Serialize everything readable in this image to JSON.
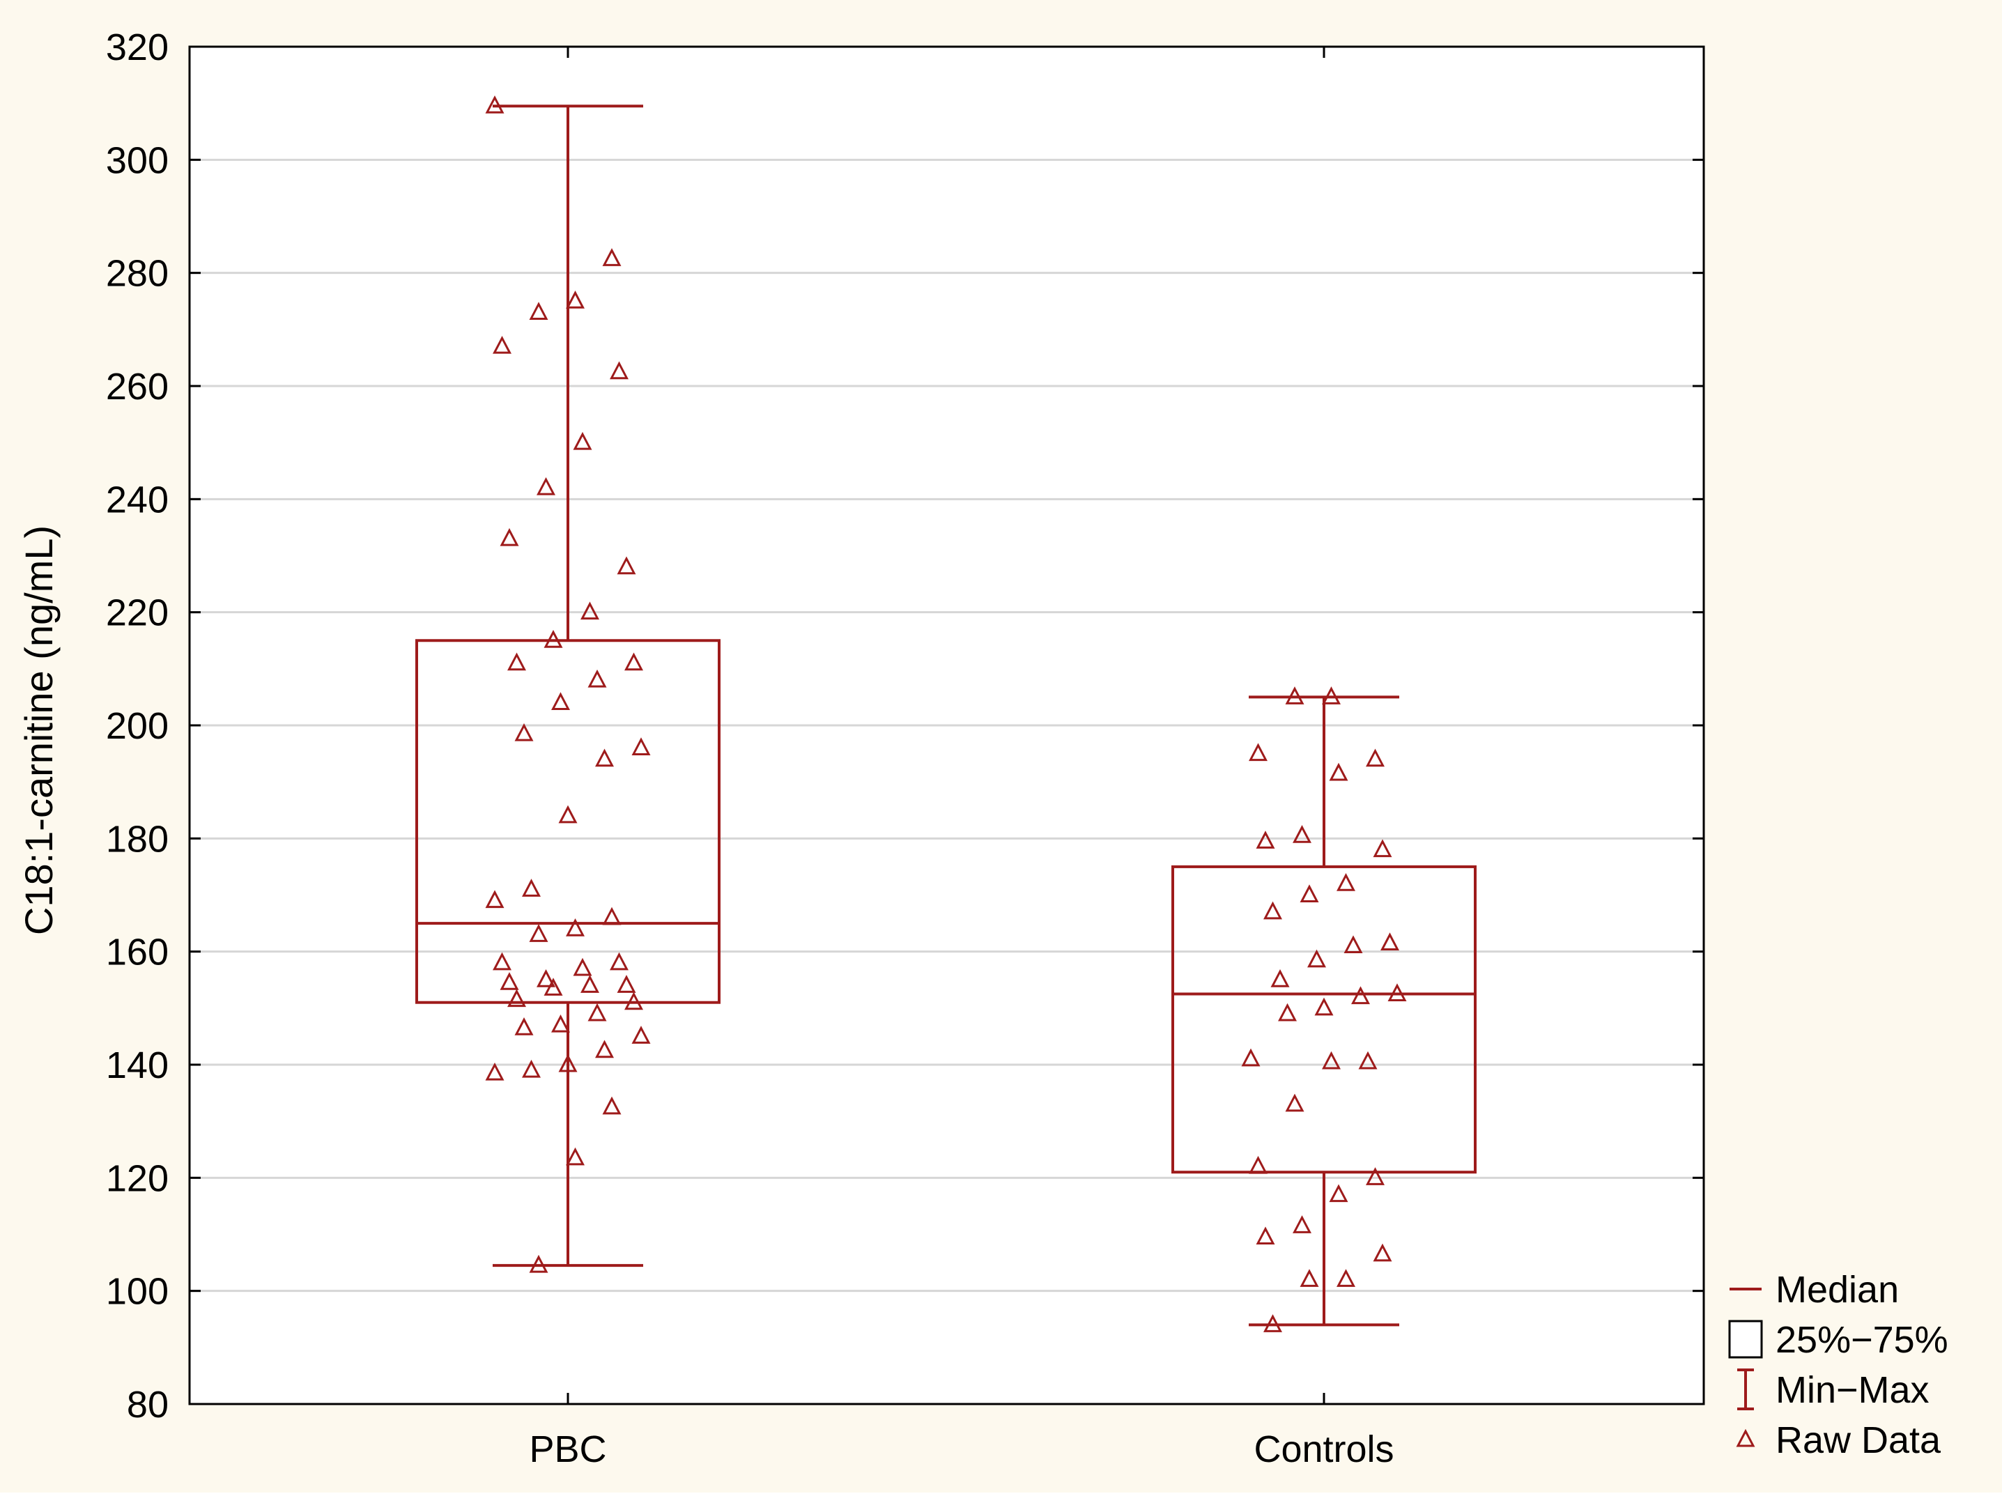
{
  "colors": {
    "page_background": "#fdf9ee",
    "plot_background": "#ffffff",
    "series": "#9e1b1b",
    "gridline": "#d6d6d6",
    "axis": "#000000"
  },
  "chart_data": {
    "type": "box",
    "title": "",
    "xlabel": "",
    "ylabel": "C18:1-carnitine (ng/mL)",
    "ylim": [
      80,
      320
    ],
    "yticks": [
      80,
      100,
      120,
      140,
      160,
      180,
      200,
      220,
      240,
      260,
      280,
      300,
      320
    ],
    "grid": true,
    "categories": [
      "PBC",
      "Controls"
    ],
    "boxes": [
      {
        "group": "PBC",
        "min": 104.5,
        "q1": 151,
        "median": 165,
        "q3": 215,
        "max": 309.5,
        "raw": [
          309.5,
          282.5,
          275,
          273,
          267,
          262.5,
          250,
          242,
          233,
          228,
          220,
          215,
          211,
          211,
          208,
          204,
          198.5,
          196,
          194,
          184,
          171,
          169,
          166,
          164,
          163,
          158,
          158,
          157,
          155,
          154.5,
          154,
          154,
          153.5,
          151.5,
          151,
          149,
          147,
          146.5,
          145,
          142.5,
          140,
          139,
          138.5,
          132.5,
          123.5,
          104.5
        ]
      },
      {
        "group": "Controls",
        "min": 94,
        "q1": 121,
        "median": 152.5,
        "q3": 175,
        "max": 205,
        "raw": [
          205,
          205,
          195,
          194,
          191.5,
          180.5,
          179.5,
          178,
          172,
          170,
          167,
          161.5,
          161,
          158.5,
          155,
          152.5,
          152,
          150,
          149,
          141,
          140.5,
          140.5,
          133,
          122,
          120,
          117,
          111.5,
          109.5,
          106.5,
          102,
          102,
          94
        ]
      }
    ],
    "legend": {
      "placement": "bottom-right-outside",
      "entries": [
        "Median",
        "25%−75%",
        "Min−Max",
        "Raw Data"
      ]
    }
  }
}
